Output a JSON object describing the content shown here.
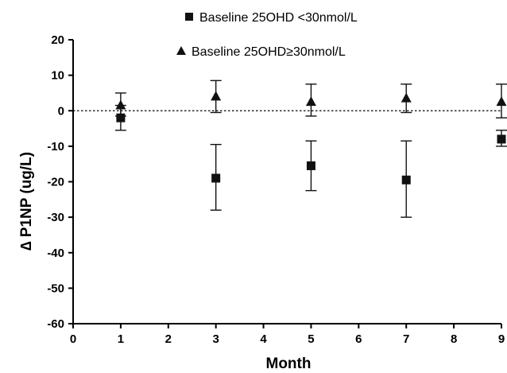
{
  "chart_data": {
    "type": "scatter",
    "xlabel": "Month",
    "ylabel": "∆ P1NP (ug/L)",
    "xlim": [
      0,
      9
    ],
    "ylim": [
      -60,
      20
    ],
    "x_ticks": [
      "0",
      "1",
      "2",
      "3",
      "4",
      "5",
      "6",
      "7",
      "8",
      "9"
    ],
    "y_ticks": [
      "20",
      "10",
      "0",
      "-10",
      "-20",
      "-30",
      "-40",
      "-50",
      "-60"
    ],
    "reference_line": 0,
    "grid": false,
    "legend_position": "top-right",
    "series": [
      {
        "name": "Baseline 25OHD <30nmol/L",
        "marker": "square",
        "color": "#111111",
        "points": [
          {
            "x": 1,
            "y": -2,
            "lower": -5.5,
            "upper": 1.5
          },
          {
            "x": 3,
            "y": -19,
            "lower": -28,
            "upper": -9.5
          },
          {
            "x": 5,
            "y": -15.5,
            "lower": -22.5,
            "upper": -8.5
          },
          {
            "x": 7,
            "y": -19.5,
            "lower": -30,
            "upper": -8.5
          },
          {
            "x": 9,
            "y": -8,
            "lower": -10,
            "upper": -5.5
          }
        ]
      },
      {
        "name": "Baseline 25OHD≥30nmol/L",
        "marker": "triangle",
        "color": "#111111",
        "points": [
          {
            "x": 1,
            "y": 1.5,
            "lower": -1.5,
            "upper": 5
          },
          {
            "x": 3,
            "y": 4,
            "lower": -0.5,
            "upper": 8.5
          },
          {
            "x": 5,
            "y": 2.5,
            "lower": -1.5,
            "upper": 7.5
          },
          {
            "x": 7,
            "y": 3.5,
            "lower": -0.5,
            "upper": 7.5
          },
          {
            "x": 9,
            "y": 2.5,
            "lower": -2,
            "upper": 7.5
          }
        ]
      }
    ]
  }
}
